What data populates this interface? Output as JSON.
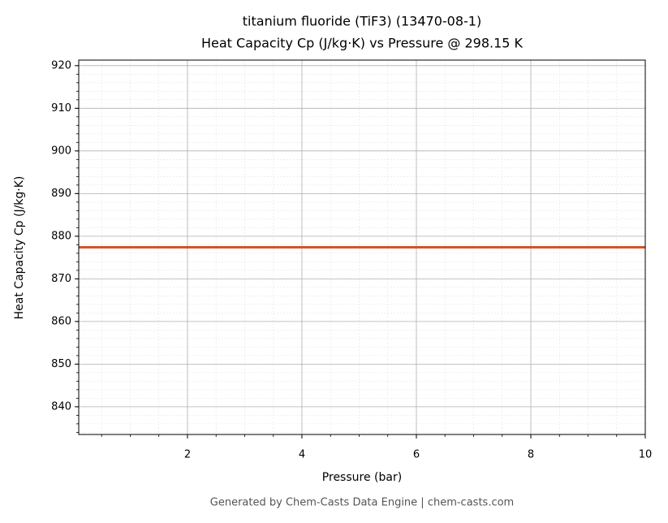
{
  "chart_data": {
    "type": "line",
    "title": "titanium fluoride (TiF3) (13470-08-1)",
    "subtitle": "Heat Capacity Cp (J/kg·K) vs Pressure @ 298.15 K",
    "x_label": "Pressure (bar)",
    "y_label": "Heat Capacity Cp (J/kg·K)",
    "footer": "Generated by Chem-Casts Data Engine | chem-casts.com",
    "x": [
      0.1,
      10
    ],
    "series": [
      {
        "name": "Heat Capacity Cp",
        "color": "#d1542b",
        "values": [
          877.4,
          877.4
        ]
      }
    ],
    "xlim": [
      0.1,
      10
    ],
    "xticks": [
      2,
      4,
      6,
      8,
      10
    ],
    "ylim": [
      833.5,
      921.3
    ],
    "yticks": [
      840,
      850,
      860,
      870,
      880,
      890,
      900,
      910,
      920
    ],
    "grid": true
  }
}
